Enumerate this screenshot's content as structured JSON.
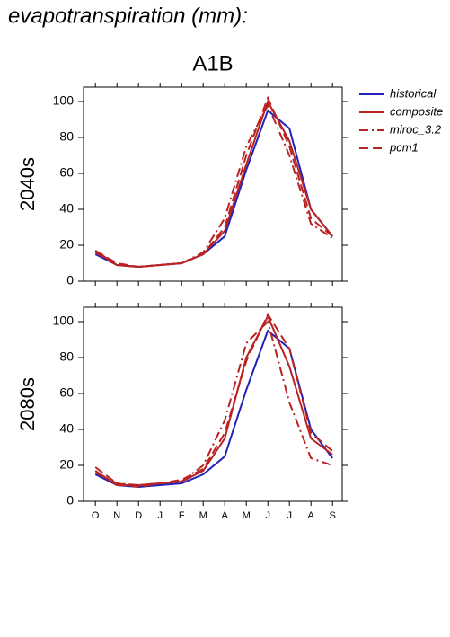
{
  "header": {
    "title": "evapotranspiration (mm):",
    "subtitle": "A1B"
  },
  "chart_data": [
    {
      "type": "line",
      "title": "2040s",
      "ylim": [
        0,
        108
      ],
      "yticks": [
        0,
        20,
        40,
        60,
        80,
        100
      ],
      "series": [
        {
          "name": "historical",
          "color": "#2222bb",
          "dash": "solid",
          "values": [
            15,
            9,
            8,
            9,
            10,
            15,
            25,
            62,
            95,
            85,
            40,
            25
          ]
        },
        {
          "name": "composite",
          "color": "#bb2222",
          "dash": "solid",
          "values": [
            17,
            9,
            8,
            9,
            10,
            15,
            28,
            65,
            100,
            78,
            40,
            25
          ]
        },
        {
          "name": "miroc_3.2",
          "color": "#bb2222",
          "dash": "dashdot",
          "values": [
            16,
            9,
            8,
            9,
            10,
            16,
            35,
            75,
            98,
            70,
            32,
            24
          ]
        },
        {
          "name": "pcm1",
          "color": "#bb2222",
          "dash": "dash",
          "values": [
            17,
            10,
            8,
            9,
            10,
            15,
            30,
            70,
            102,
            75,
            35,
            25
          ]
        }
      ]
    },
    {
      "type": "line",
      "title": "2080s",
      "ylim": [
        0,
        108
      ],
      "yticks": [
        0,
        20,
        40,
        60,
        80,
        100
      ],
      "categories": [
        "O",
        "N",
        "D",
        "J",
        "F",
        "M",
        "A",
        "M",
        "J",
        "J",
        "A",
        "S"
      ],
      "series": [
        {
          "color": "#2222bb",
          "dash": "solid",
          "values": [
            15,
            9,
            8,
            9,
            10,
            15,
            25,
            62,
            95,
            85,
            40,
            24
          ]
        },
        {
          "color": "#bb2222",
          "dash": "solid",
          "values": [
            17,
            9,
            9,
            10,
            11,
            17,
            35,
            80,
            103,
            75,
            35,
            26
          ]
        },
        {
          "color": "#bb2222",
          "dash": "dashdot",
          "values": [
            16,
            10,
            9,
            10,
            11,
            20,
            45,
            88,
            100,
            55,
            24,
            20
          ]
        },
        {
          "color": "#bb2222",
          "dash": "dash",
          "values": [
            19,
            10,
            8,
            10,
            12,
            18,
            38,
            78,
            104,
            85,
            38,
            28
          ]
        }
      ]
    }
  ]
}
